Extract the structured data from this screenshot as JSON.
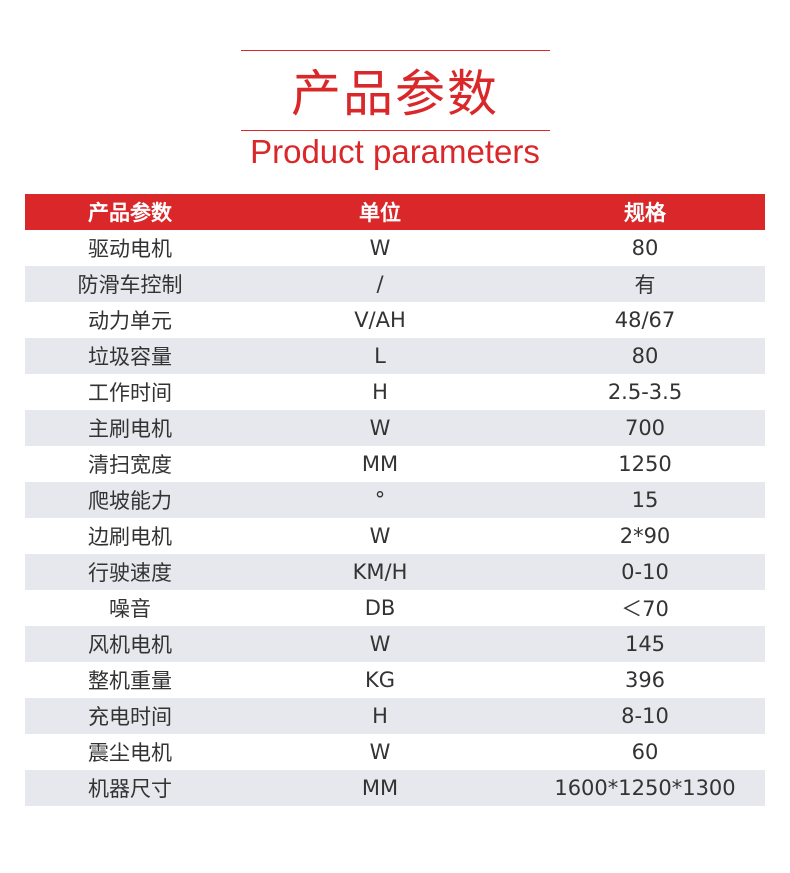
{
  "title_cn": "产品参数",
  "title_en": "Product parameters",
  "headers": [
    "产品参数",
    "单位",
    "规格"
  ],
  "rows": [
    [
      "驱动电机",
      "W",
      "80"
    ],
    [
      "防滑车控制",
      "/",
      "有"
    ],
    [
      "动力单元",
      "V/AH",
      "48/67"
    ],
    [
      "垃圾容量",
      "L",
      "80"
    ],
    [
      "工作时间",
      "H",
      "2.5-3.5"
    ],
    [
      "主刷电机",
      "W",
      "700"
    ],
    [
      "清扫宽度",
      "MM",
      "1250"
    ],
    [
      "爬坡能力",
      "°",
      "15"
    ],
    [
      "边刷电机",
      "W",
      "2*90"
    ],
    [
      "行驶速度",
      "KM/H",
      "0-10"
    ],
    [
      "噪音",
      "DB",
      "＜70"
    ],
    [
      "风机电机",
      "W",
      "145"
    ],
    [
      "整机重量",
      "KG",
      "396"
    ],
    [
      "充电时间",
      "H",
      "8-10"
    ],
    [
      "震尘电机",
      "W",
      "60"
    ],
    [
      "机器尺寸",
      "MM",
      "1600*1250*1300"
    ]
  ]
}
